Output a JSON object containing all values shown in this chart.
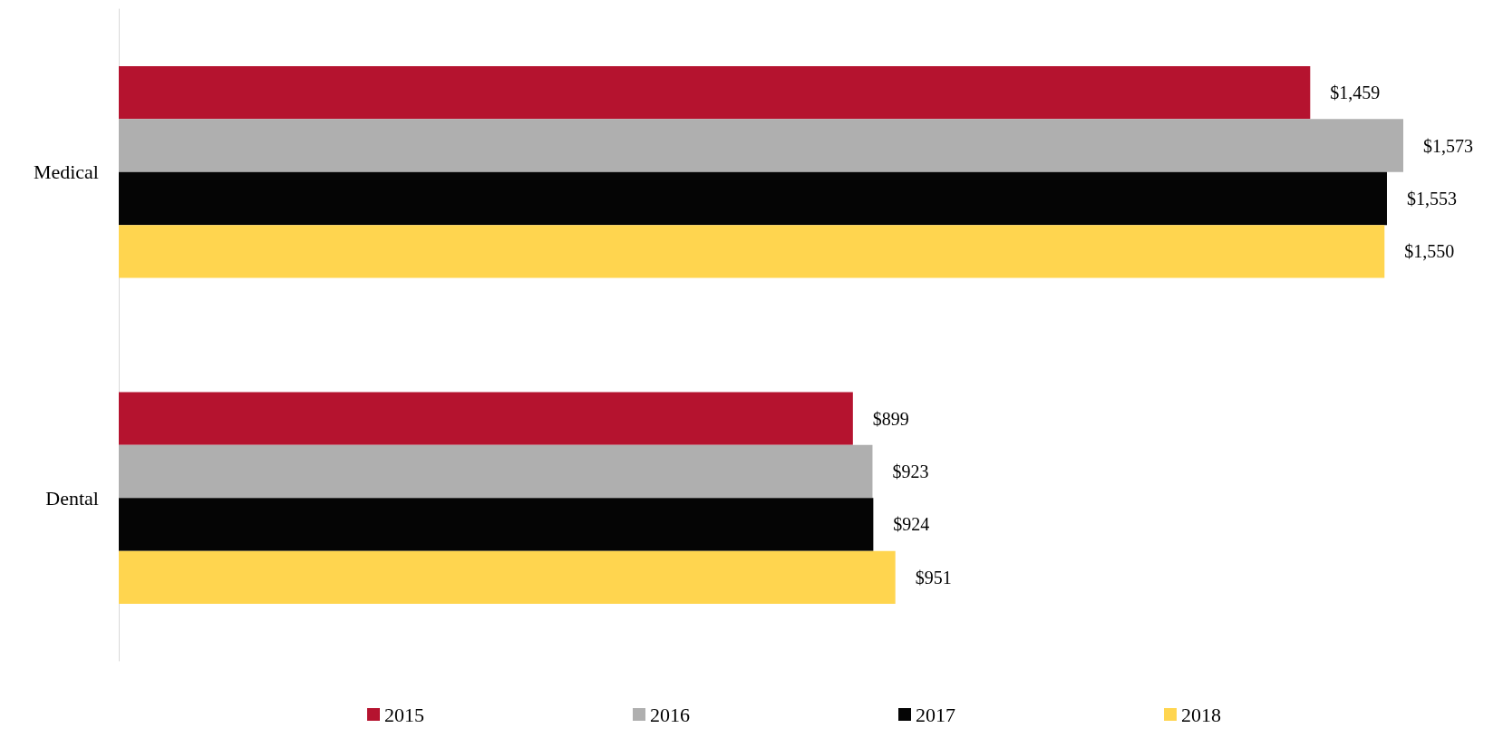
{
  "chart_data": {
    "type": "bar",
    "orientation": "horizontal",
    "categories": [
      "Medical",
      "Dental"
    ],
    "series": [
      {
        "name": "2015",
        "color": "#b5132f",
        "values": [
          1459,
          899
        ],
        "value_labels": [
          "$1,459",
          "$899"
        ]
      },
      {
        "name": "2016",
        "color": "#afafaf",
        "values": [
          1573,
          923
        ],
        "value_labels": [
          "$1,573",
          "$923"
        ]
      },
      {
        "name": "2017",
        "color": "#050505",
        "values": [
          1553,
          924
        ],
        "value_labels": [
          "$1,553",
          "$924"
        ]
      },
      {
        "name": "2018",
        "color": "#ffd54f",
        "values": [
          1550,
          951
        ],
        "value_labels": [
          "$1,550",
          "$951"
        ]
      }
    ],
    "legend": "bottom",
    "grid": false
  }
}
